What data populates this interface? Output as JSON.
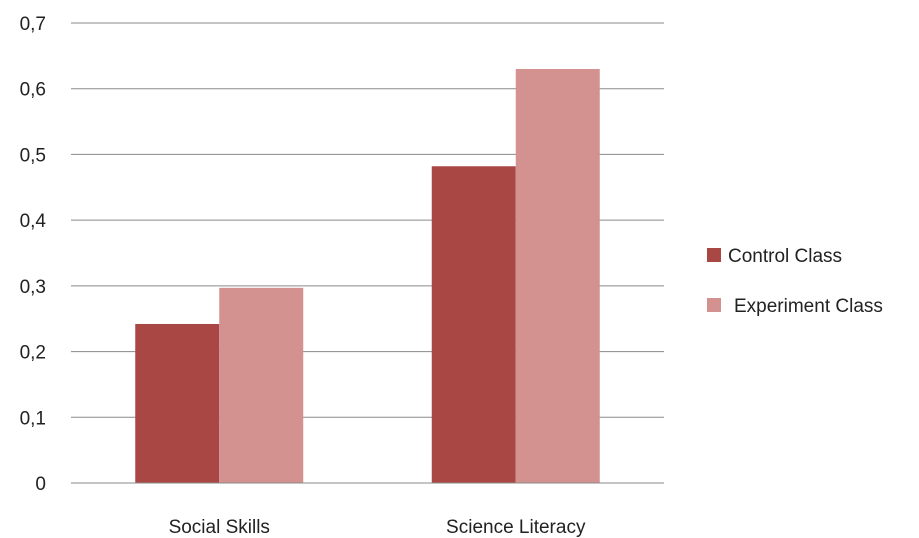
{
  "chart_data": {
    "type": "bar",
    "categories": [
      "Social Skills",
      "Science Literacy"
    ],
    "series": [
      {
        "name": "Control Class",
        "values": [
          0.242,
          0.482
        ],
        "color": "#a84744"
      },
      {
        "name": "Experiment Class",
        "values": [
          0.297,
          0.63
        ],
        "color": "#d39190"
      }
    ],
    "ylim": [
      0,
      0.7
    ],
    "yticks": [
      0,
      0.1,
      0.2,
      0.3,
      0.4,
      0.5,
      0.6,
      0.7
    ],
    "ytick_labels": [
      "0",
      "0,1",
      "0,2",
      "0,3",
      "0,4",
      "0,5",
      "0,6",
      "0,7"
    ],
    "grid": true,
    "legend_position": "right",
    "title": "",
    "xlabel": "",
    "ylabel": ""
  }
}
